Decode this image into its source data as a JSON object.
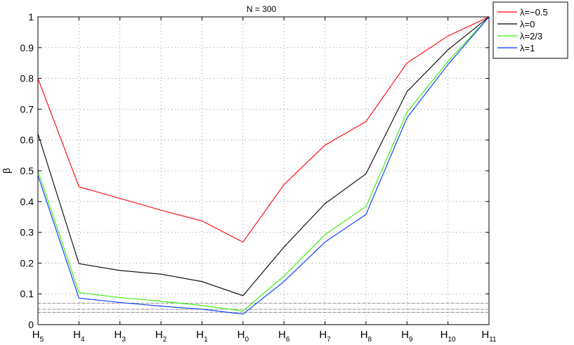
{
  "chart_data": {
    "type": "line",
    "title": "N = 300",
    "xlabel": "",
    "ylabel": "β",
    "categories": [
      {
        "base": "H",
        "sub": "5"
      },
      {
        "base": "H",
        "sub": "4"
      },
      {
        "base": "H",
        "sub": "3"
      },
      {
        "base": "H",
        "sub": "2"
      },
      {
        "base": "H",
        "sub": "1"
      },
      {
        "base": "H",
        "sub": "0"
      },
      {
        "base": "H",
        "sub": "6"
      },
      {
        "base": "H",
        "sub": "7"
      },
      {
        "base": "H",
        "sub": "8"
      },
      {
        "base": "H",
        "sub": "9"
      },
      {
        "base": "H",
        "sub": "10"
      },
      {
        "base": "H",
        "sub": "11"
      }
    ],
    "ylim": [
      0,
      1
    ],
    "yticks": [
      "0",
      "0.1",
      "0.2",
      "0.3",
      "0.4",
      "0.5",
      "0.6",
      "0.7",
      "0.8",
      "0.9",
      "1"
    ],
    "grid": true,
    "legend_position": "outside-top-right",
    "series": [
      {
        "name": "λ=−0.5",
        "color": "#ff0000",
        "values": [
          0.8,
          0.448,
          0.41,
          0.372,
          0.337,
          0.268,
          0.455,
          0.583,
          0.66,
          0.85,
          0.938,
          1.0
        ]
      },
      {
        "name": "λ=0",
        "color": "#000000",
        "values": [
          0.62,
          0.198,
          0.176,
          0.164,
          0.14,
          0.094,
          0.252,
          0.393,
          0.49,
          0.757,
          0.893,
          1.0
        ]
      },
      {
        "name": "λ=2/3",
        "color": "#33ee00",
        "values": [
          0.5,
          0.104,
          0.088,
          0.076,
          0.062,
          0.044,
          0.158,
          0.292,
          0.384,
          0.69,
          0.855,
          1.0
        ]
      },
      {
        "name": "λ=1",
        "color": "#0033ff",
        "values": [
          0.485,
          0.086,
          0.072,
          0.06,
          0.05,
          0.034,
          0.14,
          0.268,
          0.358,
          0.672,
          0.845,
          1.0
        ]
      }
    ],
    "reference_lines": [
      0.07,
      0.05,
      0.04
    ]
  }
}
